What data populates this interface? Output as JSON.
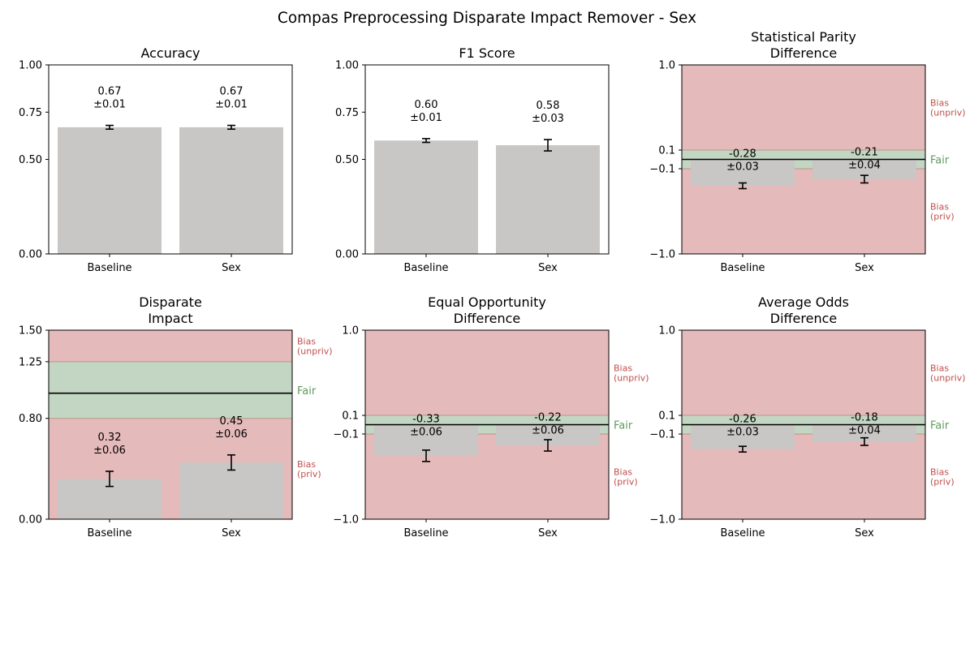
{
  "title": "Compas Preprocessing Disparate Impact Remover - Sex",
  "colors": {
    "bar": "#c8c7c5",
    "bias_region": "#e5baba",
    "fair_region": "#c3d6c3",
    "bias_label": "#c0504d",
    "fair_label": "#5f9a5f",
    "axis": "#000000"
  },
  "chart_data": [
    {
      "type": "bar",
      "title": "Accuracy",
      "categories": [
        "Baseline",
        "Sex"
      ],
      "values": [
        0.67,
        0.67
      ],
      "errors": [
        0.01,
        0.01
      ],
      "value_labels": [
        "0.67",
        "0.67"
      ],
      "error_labels": [
        "±0.01",
        "±0.01"
      ],
      "ylim": [
        0,
        1
      ],
      "yticks": [
        0,
        0.5,
        0.75,
        1.0
      ],
      "ytick_labels": [
        "0.00",
        "0.50",
        "0.75",
        "1.00"
      ],
      "fairness": null
    },
    {
      "type": "bar",
      "title": "F1 Score",
      "categories": [
        "Baseline",
        "Sex"
      ],
      "values": [
        0.6,
        0.575
      ],
      "errors": [
        0.01,
        0.03
      ],
      "value_labels": [
        "0.60",
        "0.58"
      ],
      "error_labels": [
        "±0.01",
        "±0.03"
      ],
      "ylim": [
        0,
        1
      ],
      "yticks": [
        0,
        0.5,
        0.75,
        1.0
      ],
      "ytick_labels": [
        "0.00",
        "0.50",
        "0.75",
        "1.00"
      ],
      "fairness": null
    },
    {
      "type": "bar",
      "title": [
        "Statistical Parity",
        "Difference"
      ],
      "categories": [
        "Baseline",
        "Sex"
      ],
      "values": [
        -0.28,
        -0.21
      ],
      "errors": [
        0.03,
        0.04
      ],
      "value_labels": [
        "-0.28",
        "-0.21"
      ],
      "error_labels": [
        "±0.03",
        "±0.04"
      ],
      "ylim": [
        -1,
        1
      ],
      "yticks": [
        -1.0,
        -0.1,
        0.1,
        1.0
      ],
      "ytick_labels": [
        "−1.0",
        "−0.1",
        "0.1",
        "1.0"
      ],
      "scale": "symlog-band",
      "fairness": {
        "fair_range": [
          -0.1,
          0.1
        ],
        "reference": 0,
        "labels": {
          "upper": [
            "Bias",
            "(unpriv)"
          ],
          "fair": "Fair",
          "lower": [
            "Bias",
            "(priv)"
          ]
        }
      }
    },
    {
      "type": "bar",
      "title": [
        "Disparate",
        "Impact"
      ],
      "categories": [
        "Baseline",
        "Sex"
      ],
      "values": [
        0.32,
        0.45
      ],
      "errors": [
        0.06,
        0.06
      ],
      "value_labels": [
        "0.32",
        "0.45"
      ],
      "error_labels": [
        "±0.06",
        "±0.06"
      ],
      "ylim": [
        0,
        1.5
      ],
      "yticks": [
        0,
        0.8,
        1.25,
        1.5
      ],
      "ytick_labels": [
        "0.00",
        "0.80",
        "1.25",
        "1.50"
      ],
      "scale": "linear",
      "fairness": {
        "fair_range": [
          0.8,
          1.25
        ],
        "reference": 1.0,
        "labels": {
          "upper": [
            "Bias",
            "(unpriv)"
          ],
          "fair": "Fair",
          "lower": [
            "Bias",
            "(priv)"
          ]
        }
      }
    },
    {
      "type": "bar",
      "title": [
        "Equal Opportunity",
        "Difference"
      ],
      "categories": [
        "Baseline",
        "Sex"
      ],
      "values": [
        -0.33,
        -0.22
      ],
      "errors": [
        0.06,
        0.06
      ],
      "value_labels": [
        "-0.33",
        "-0.22"
      ],
      "error_labels": [
        "±0.06",
        "±0.06"
      ],
      "ylim": [
        -1,
        1
      ],
      "yticks": [
        -1.0,
        -0.1,
        0.1,
        1.0
      ],
      "ytick_labels": [
        "−1.0",
        "−0.1",
        "0.1",
        "1.0"
      ],
      "scale": "symlog-band",
      "fairness": {
        "fair_range": [
          -0.1,
          0.1
        ],
        "reference": 0,
        "labels": {
          "upper": [
            "Bias",
            "(unpriv)"
          ],
          "fair": "Fair",
          "lower": [
            "Bias",
            "(priv)"
          ]
        }
      }
    },
    {
      "type": "bar",
      "title": [
        "Average Odds",
        "Difference"
      ],
      "categories": [
        "Baseline",
        "Sex"
      ],
      "values": [
        -0.26,
        -0.18
      ],
      "errors": [
        0.03,
        0.04
      ],
      "value_labels": [
        "-0.26",
        "-0.18"
      ],
      "error_labels": [
        "±0.03",
        "±0.04"
      ],
      "ylim": [
        -1,
        1
      ],
      "yticks": [
        -1.0,
        -0.1,
        0.1,
        1.0
      ],
      "ytick_labels": [
        "−1.0",
        "−0.1",
        "0.1",
        "1.0"
      ],
      "scale": "symlog-band",
      "fairness": {
        "fair_range": [
          -0.1,
          0.1
        ],
        "reference": 0,
        "labels": {
          "upper": [
            "Bias",
            "(unpriv)"
          ],
          "fair": "Fair",
          "lower": [
            "Bias",
            "(priv)"
          ]
        }
      }
    }
  ]
}
